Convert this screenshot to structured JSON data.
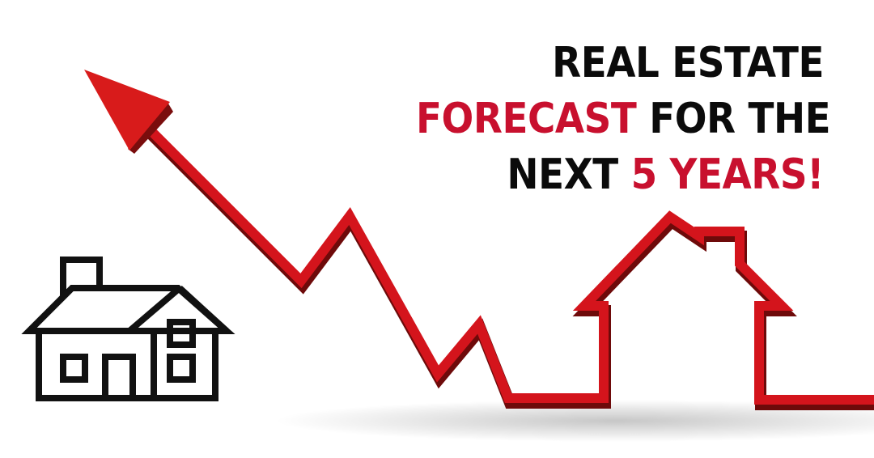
{
  "headline": {
    "line1": "REAL ESTATE",
    "line2_accent": "FORECAST",
    "line2_rest": " FOR THE",
    "line3_start": "NEXT ",
    "line3_accent": "5 YEARS!"
  },
  "colors": {
    "text": "#0b0b0b",
    "accent": "#c8102e",
    "background": "#ffffff"
  },
  "icons": {
    "house": "house-outline-icon",
    "trend": "red-trend-arrow-icon"
  }
}
